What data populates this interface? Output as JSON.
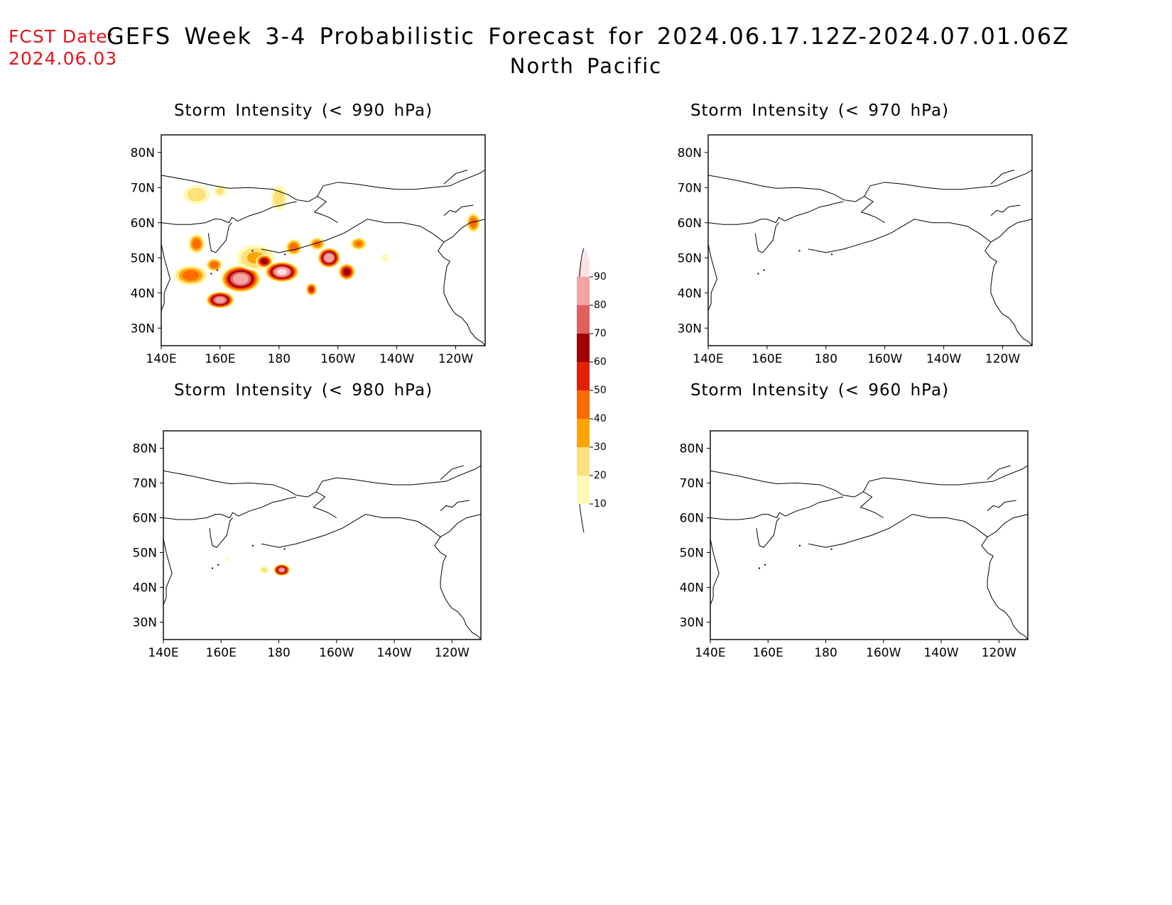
{
  "header": {
    "fcst_label": "FCST Date:",
    "fcst_date": "2024.06.03",
    "title": "GEFS Week 3-4 Probabilistic Forecast for 2024.06.17.12Z-2024.07.01.06Z",
    "subtitle": "North Pacific"
  },
  "axes": {
    "lat_labels": [
      "80N",
      "70N",
      "60N",
      "50N",
      "40N",
      "30N"
    ],
    "lat_values": [
      80,
      70,
      60,
      50,
      40,
      30
    ],
    "lon_labels": [
      "140E",
      "160E",
      "180",
      "160W",
      "140W",
      "120W"
    ],
    "lon_values": [
      140,
      160,
      180,
      200,
      220,
      240
    ],
    "lon_range": [
      140,
      250
    ],
    "lat_range": [
      25,
      85
    ]
  },
  "panels": [
    {
      "id": "p990",
      "title": "Storm Intensity (< 990 hPa)",
      "features": [
        {
          "lon": 150,
          "lat": 45,
          "rx": 6,
          "ry": 3,
          "peak": 45
        },
        {
          "lon": 152,
          "lat": 54,
          "rx": 3,
          "ry": 3,
          "peak": 45
        },
        {
          "lon": 152,
          "lat": 68,
          "rx": 5,
          "ry": 3,
          "peak": 25
        },
        {
          "lon": 158,
          "lat": 48,
          "rx": 3,
          "ry": 2,
          "peak": 45
        },
        {
          "lon": 160,
          "lat": 38,
          "rx": 5,
          "ry": 2.5,
          "peak": 85
        },
        {
          "lon": 160,
          "lat": 69,
          "rx": 2.5,
          "ry": 2,
          "peak": 20
        },
        {
          "lon": 167,
          "lat": 44,
          "rx": 7,
          "ry": 4,
          "peak": 88
        },
        {
          "lon": 172,
          "lat": 50,
          "rx": 7,
          "ry": 4,
          "peak": 30
        },
        {
          "lon": 175,
          "lat": 49,
          "rx": 3,
          "ry": 2,
          "peak": 65
        },
        {
          "lon": 180,
          "lat": 67,
          "rx": 3,
          "ry": 4,
          "peak": 25
        },
        {
          "lon": 181,
          "lat": 46,
          "rx": 6,
          "ry": 3,
          "peak": 92
        },
        {
          "lon": 185,
          "lat": 53,
          "rx": 3,
          "ry": 2.5,
          "peak": 45
        },
        {
          "lon": 191,
          "lat": 41,
          "rx": 2,
          "ry": 2,
          "peak": 55
        },
        {
          "lon": 193,
          "lat": 54,
          "rx": 3,
          "ry": 2,
          "peak": 40
        },
        {
          "lon": 197,
          "lat": 50,
          "rx": 4,
          "ry": 3,
          "peak": 88
        },
        {
          "lon": 203,
          "lat": 46,
          "rx": 3,
          "ry": 2.5,
          "peak": 65
        },
        {
          "lon": 207,
          "lat": 54,
          "rx": 3,
          "ry": 2,
          "peak": 40
        },
        {
          "lon": 216,
          "lat": 50,
          "rx": 1.5,
          "ry": 1.5,
          "peak": 15
        },
        {
          "lon": 246,
          "lat": 60,
          "rx": 2.5,
          "ry": 3,
          "peak": 45
        }
      ]
    },
    {
      "id": "p970",
      "title": "Storm Intensity (< 970 hPa)",
      "features": []
    },
    {
      "id": "p980",
      "title": "Storm Intensity (< 980 hPa)",
      "features": [
        {
          "lon": 175,
          "lat": 45,
          "rx": 2,
          "ry": 1.2,
          "peak": 20
        },
        {
          "lon": 181,
          "lat": 45,
          "rx": 3,
          "ry": 1.8,
          "peak": 82
        },
        {
          "lon": 162,
          "lat": 48,
          "rx": 0.8,
          "ry": 0.8,
          "peak": 12
        }
      ]
    },
    {
      "id": "p960",
      "title": "Storm Intensity (< 960 hPa)",
      "features": []
    }
  ],
  "colorbar": {
    "levels": [
      "10",
      "20",
      "30",
      "40",
      "50",
      "60",
      "70",
      "80",
      "90"
    ],
    "colors": [
      "#fff9b6",
      "#fce17c",
      "#fca500",
      "#fd6a00",
      "#e32000",
      "#a10000",
      "#e06060",
      "#f3a3a3",
      "#fde2e2"
    ]
  }
}
